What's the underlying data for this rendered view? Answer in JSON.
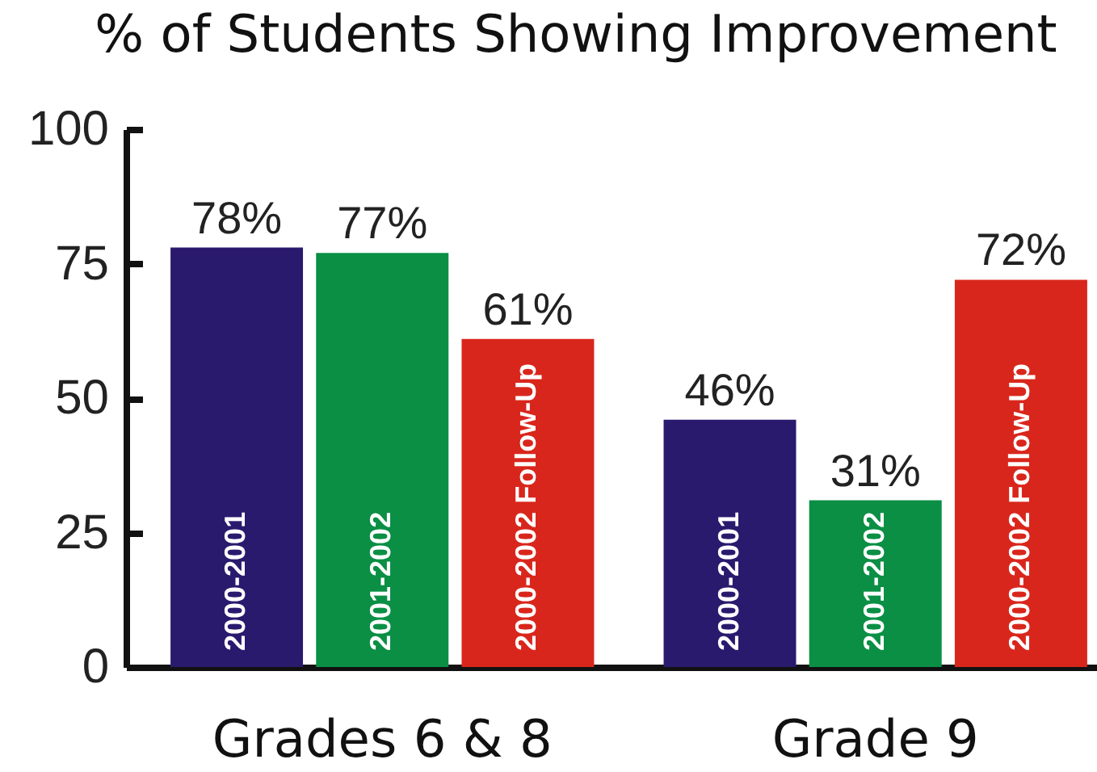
{
  "chart_data": {
    "type": "bar",
    "title": "% of Students Showing Improvement",
    "categories": [
      "Grades 6 & 8",
      "Grade 9"
    ],
    "series": [
      {
        "name": "2000-2001",
        "color": "#2a1a6e",
        "values": [
          78,
          46
        ],
        "value_labels": [
          "78%",
          "46%"
        ]
      },
      {
        "name": "2001-2002",
        "color": "#0a8f45",
        "values": [
          77,
          31
        ],
        "value_labels": [
          "77%",
          "31%"
        ]
      },
      {
        "name": "2000-2002 Follow-Up",
        "color": "#d9261c",
        "values": [
          61,
          72
        ],
        "value_labels": [
          "61%",
          "72%"
        ]
      }
    ],
    "ylim": [
      0,
      100
    ],
    "yticks": [
      0,
      25,
      50,
      75,
      100
    ],
    "grid": false,
    "legend": false
  }
}
